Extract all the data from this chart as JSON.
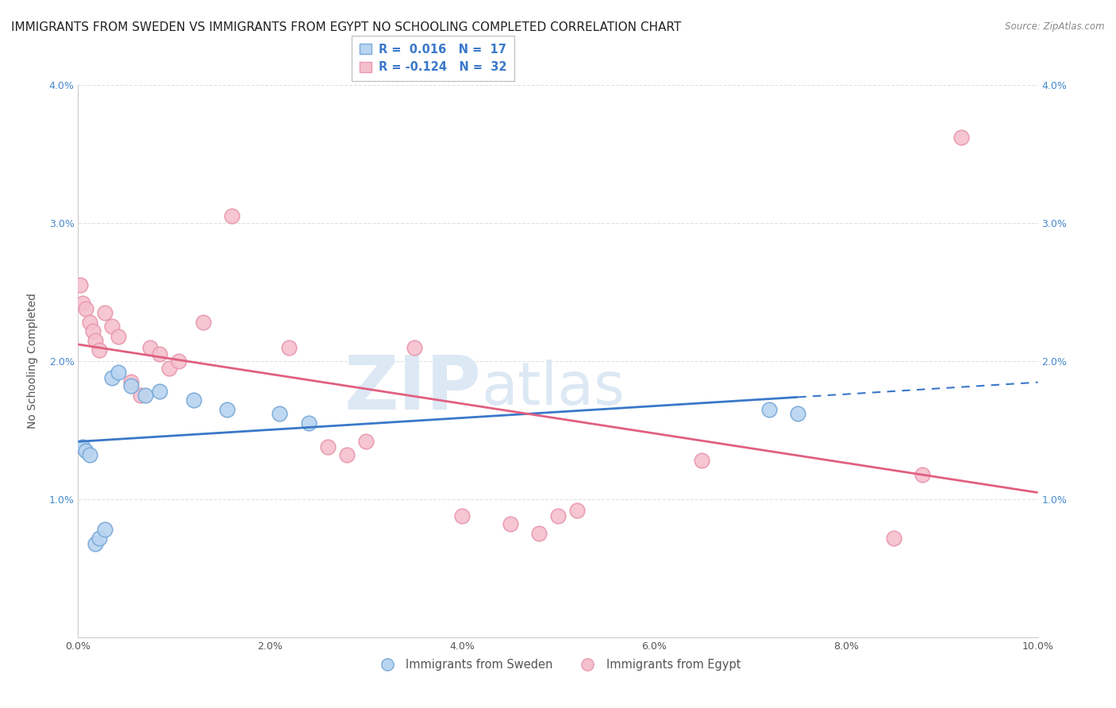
{
  "title": "IMMIGRANTS FROM SWEDEN VS IMMIGRANTS FROM EGYPT NO SCHOOLING COMPLETED CORRELATION CHART",
  "source": "Source: ZipAtlas.com",
  "ylabel": "No Schooling Completed",
  "xlim": [
    0,
    10.0
  ],
  "ylim": [
    0,
    4.0
  ],
  "xtick_labels": [
    "0.0%",
    "2.0%",
    "4.0%",
    "6.0%",
    "8.0%",
    "10.0%"
  ],
  "xtick_values": [
    0,
    2,
    4,
    6,
    8,
    10
  ],
  "ytick_labels": [
    "1.0%",
    "2.0%",
    "3.0%",
    "4.0%"
  ],
  "ytick_values": [
    1,
    2,
    3,
    4
  ],
  "sweden_color": "#b8d4f0",
  "egypt_color": "#f5c0ce",
  "sweden_edge_color": "#7aaad8",
  "egypt_edge_color": "#e898b0",
  "blue_line_color": "#3a78c9",
  "pink_line_color": "#e06080",
  "watermark_zip": "ZIP",
  "watermark_atlas": "atlas",
  "sweden_x": [
    0.05,
    0.08,
    0.12,
    0.18,
    0.22,
    0.28,
    0.35,
    0.42,
    0.55,
    0.7,
    0.85,
    1.2,
    1.55,
    2.1,
    2.4,
    7.2,
    7.5
  ],
  "sweden_y": [
    1.38,
    1.35,
    1.32,
    0.68,
    0.72,
    0.78,
    1.88,
    1.92,
    1.82,
    1.75,
    1.78,
    1.72,
    1.65,
    1.62,
    1.55,
    1.65,
    1.62
  ],
  "egypt_x": [
    0.02,
    0.05,
    0.08,
    0.12,
    0.15,
    0.18,
    0.22,
    0.28,
    0.35,
    0.42,
    0.55,
    0.65,
    0.75,
    0.85,
    0.95,
    1.05,
    1.3,
    1.6,
    2.2,
    2.6,
    2.8,
    3.0,
    3.5,
    4.0,
    4.5,
    4.8,
    5.0,
    5.2,
    6.5,
    8.5,
    8.8,
    9.2
  ],
  "egypt_y": [
    2.55,
    2.42,
    2.38,
    2.28,
    2.22,
    2.15,
    2.08,
    2.35,
    2.25,
    2.18,
    1.85,
    1.75,
    2.1,
    2.05,
    1.95,
    2.0,
    2.28,
    3.05,
    2.1,
    1.38,
    1.32,
    1.42,
    2.1,
    0.88,
    0.82,
    0.75,
    0.88,
    0.92,
    1.28,
    0.72,
    1.18,
    3.62
  ],
  "sweden_marker_size": 180,
  "egypt_marker_size": 180,
  "background_color": "#ffffff",
  "grid_color": "#e0e0e0",
  "title_fontsize": 11,
  "axis_label_fontsize": 10,
  "tick_fontsize": 9,
  "tick_color": "#555555",
  "ytick_color": "#4488cc"
}
